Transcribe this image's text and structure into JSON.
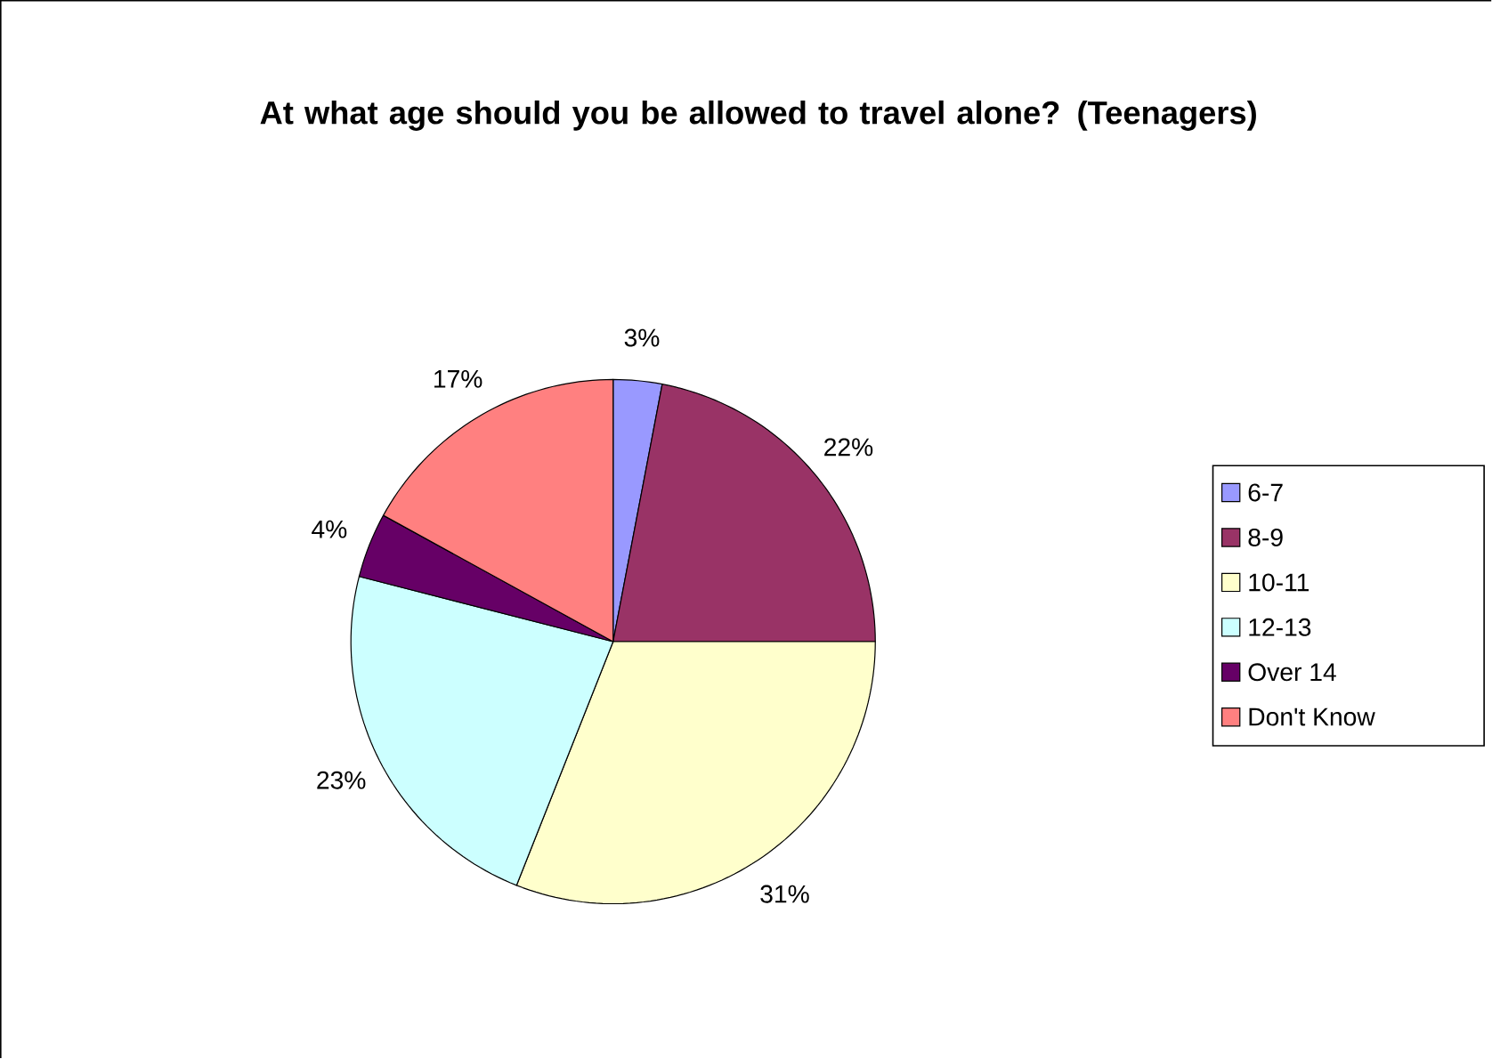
{
  "chart_data": {
    "type": "pie",
    "title": "At what age should you be allowed to travel alone? (Teenagers)",
    "categories": [
      "6-7",
      "8-9",
      "10-11",
      "12-13",
      "Over 14",
      "Don't Know"
    ],
    "values": [
      3,
      22,
      31,
      23,
      4,
      17
    ],
    "value_labels": [
      "3%",
      "22%",
      "31%",
      "23%",
      "4%",
      "17%"
    ],
    "colors": [
      "#9999ff",
      "#993366",
      "#ffffcc",
      "#ccffff",
      "#660066",
      "#ff8080"
    ],
    "legend": "right"
  }
}
